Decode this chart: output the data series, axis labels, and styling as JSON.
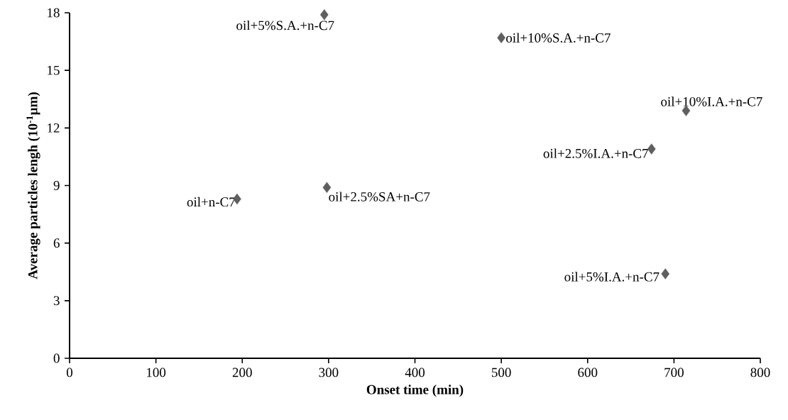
{
  "chart_data": {
    "type": "scatter",
    "xlabel": "Onset time (min)",
    "ylabel": "Average particles lengh (10$^{-1}$µm)",
    "x": [
      194,
      295,
      298,
      500,
      714,
      674,
      690
    ],
    "series": [
      {
        "color": "#5f5f5f",
        "values": [
          8.3,
          17.9,
          8.9,
          16.7,
          12.9,
          10.9,
          4.4
        ]
      }
    ],
    "marker": "diamond",
    "grid": false,
    "xlim": [
      0,
      800
    ],
    "xticks": [
      0,
      100,
      200,
      300,
      400,
      500,
      600,
      700,
      800
    ],
    "ylim": [
      0,
      18
    ],
    "yticks": [
      0,
      3,
      6,
      9,
      12,
      15,
      18
    ],
    "annotations": [
      {
        "text": "oil+n-C7",
        "x": 194,
        "y": 8.3
      },
      {
        "text": "oil+5%S.A.+n-C7",
        "x": 295,
        "y": 17.9
      },
      {
        "text": "oil+2.5%SA+n-C7",
        "x": 298,
        "y": 8.9
      },
      {
        "text": "oil+10%S.A.+n-C7",
        "x": 500,
        "y": 16.7
      },
      {
        "text": "oil+10%I.A.+n-C7",
        "x": 714,
        "y": 12.9
      },
      {
        "text": "oil+2.5%I.A.+n-C7",
        "x": 674,
        "y": 10.9
      },
      {
        "text": "oil+5%I.A.+n-C7",
        "x": 690,
        "y": 4.4
      }
    ]
  }
}
